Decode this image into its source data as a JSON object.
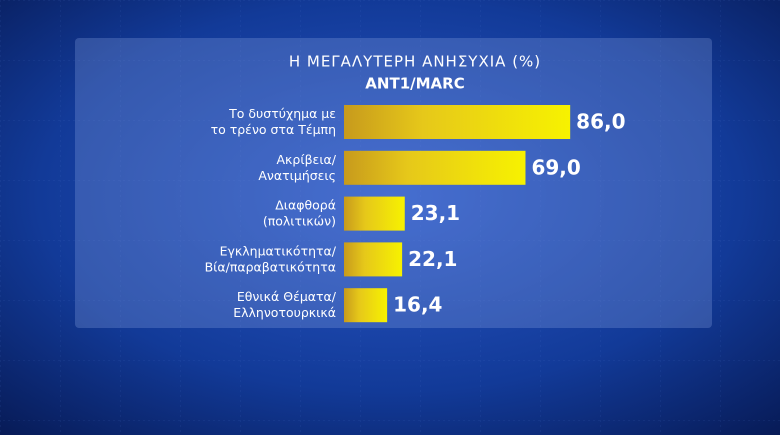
{
  "chart_data": {
    "type": "bar",
    "orientation": "horizontal",
    "title": "Η ΜΕΓΑΛΥΤΕΡΗ ΑΝΗΣΥΧΙΑ (%)",
    "subtitle": "ANT1/MARC",
    "categories": [
      [
        "Το δυστύχημα με",
        "το τρένο στα Τέμπη"
      ],
      [
        "Ακρίβεια/",
        "Ανατιμήσεις"
      ],
      [
        "Διαφθορά",
        "(πολιτικών)"
      ],
      [
        "Εγκληματικότητα/",
        "Βία/παραβατικότητα"
      ],
      [
        "Εθνικά Θέματα/",
        "Ελληνοτουρκικά"
      ]
    ],
    "values": [
      86.0,
      69.0,
      23.1,
      22.1,
      16.4
    ],
    "value_labels": [
      "86,0",
      "69,0",
      "23,1",
      "22,1",
      "16,4"
    ],
    "color": "#f2ea00"
  }
}
